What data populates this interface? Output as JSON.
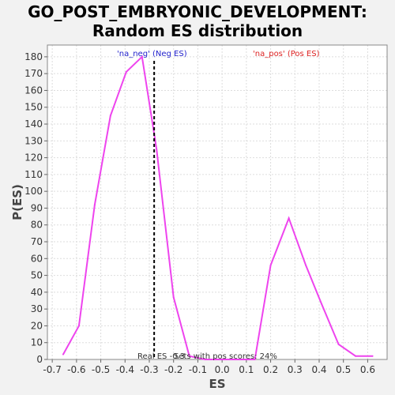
{
  "chart_data": {
    "type": "line",
    "title_line1": "GO_POST_EMBRYONIC_DEVELOPMENT:",
    "title_line2": "Random ES distribution",
    "xlabel": "ES",
    "ylabel": "P(ES)",
    "xlim": [
      -0.72,
      0.68
    ],
    "ylim": [
      0,
      187
    ],
    "xticks": [
      "-0.7",
      "-0.6",
      "-0.5",
      "-0.4",
      "-0.3",
      "-0.2",
      "-0.1",
      "0.0",
      "0.1",
      "0.2",
      "0.3",
      "0.4",
      "0.5",
      "0.6"
    ],
    "xtick_values": [
      -0.7,
      -0.6,
      -0.5,
      -0.4,
      -0.3,
      -0.2,
      -0.1,
      0.0,
      0.1,
      0.2,
      0.3,
      0.4,
      0.5,
      0.6
    ],
    "yticks": [
      0,
      10,
      20,
      30,
      40,
      50,
      60,
      70,
      80,
      90,
      100,
      110,
      120,
      130,
      140,
      150,
      160,
      170,
      180
    ],
    "grid": true,
    "series": [
      {
        "name": "Random ES",
        "color": "#ee44ee",
        "x": [
          -0.655,
          -0.59,
          -0.525,
          -0.46,
          -0.395,
          -0.33,
          -0.27,
          -0.2,
          -0.135,
          -0.07,
          0.0,
          0.07,
          0.135,
          0.2,
          0.275,
          0.345,
          0.41,
          0.48,
          0.55,
          0.62
        ],
        "y": [
          3,
          20,
          92,
          145,
          171,
          180,
          125,
          37,
          2,
          0,
          0,
          0,
          0,
          56,
          84,
          56,
          33,
          9,
          2,
          2
        ]
      }
    ],
    "real_es": -0.28,
    "real_es_color": "#000000",
    "annotation_neg": "'na_neg' (Neg ES)",
    "annotation_neg_color": "#2222cc",
    "annotation_pos": "'na_pos' (Pos ES)",
    "annotation_pos_color": "#dd2222",
    "footer_text": "Real ES -0.3",
    "footer_text2": "Sets with pos scores: 24%"
  }
}
